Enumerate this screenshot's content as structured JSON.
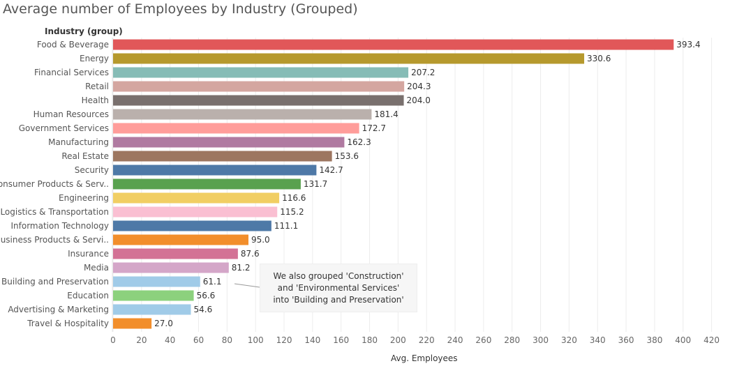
{
  "chart_data": {
    "type": "bar",
    "orientation": "horizontal",
    "title": "Average number of Employees by Industry (Grouped)",
    "row_header": "Industry (group)",
    "xlabel": "Avg. Employees",
    "xlim": [
      0,
      430
    ],
    "x_ticks": [
      0,
      20,
      40,
      60,
      80,
      100,
      120,
      140,
      160,
      180,
      200,
      220,
      240,
      260,
      280,
      300,
      320,
      340,
      360,
      380,
      400,
      420
    ],
    "grid": "vertical",
    "bars": [
      {
        "category": "Food & Beverage",
        "value": 393.4,
        "label": "393.4",
        "color": "#e15759"
      },
      {
        "category": "Energy",
        "value": 330.6,
        "label": "330.6",
        "color": "#b6992d"
      },
      {
        "category": "Financial Services",
        "value": 207.2,
        "label": "207.2",
        "color": "#86bcb6"
      },
      {
        "category": "Retail",
        "value": 204.3,
        "label": "204.3",
        "color": "#d4a6a0"
      },
      {
        "category": "Health",
        "value": 204.0,
        "label": "204.0",
        "color": "#79706e"
      },
      {
        "category": "Human Resources",
        "value": 181.4,
        "label": "181.4",
        "color": "#bab0ac"
      },
      {
        "category": "Government Services",
        "value": 172.7,
        "label": "172.7",
        "color": "#ff9d9a"
      },
      {
        "category": "Manufacturing",
        "value": 162.3,
        "label": "162.3",
        "color": "#b07aa1"
      },
      {
        "category": "Real Estate",
        "value": 153.6,
        "label": "153.6",
        "color": "#9d7660"
      },
      {
        "category": "Security",
        "value": 142.7,
        "label": "142.7",
        "color": "#4e79a7"
      },
      {
        "category": "Consumer Products & Serv..",
        "value": 131.7,
        "label": "131.7",
        "color": "#59a14f"
      },
      {
        "category": "Engineering",
        "value": 116.6,
        "label": "116.6",
        "color": "#f1ce63"
      },
      {
        "category": "Logistics & Transportation",
        "value": 115.2,
        "label": "115.2",
        "color": "#fabfd2"
      },
      {
        "category": "Information Technology",
        "value": 111.1,
        "label": "111.1",
        "color": "#4e79a7"
      },
      {
        "category": "Business Products & Servi..",
        "value": 95.0,
        "label": "95.0",
        "color": "#f28e2b"
      },
      {
        "category": "Insurance",
        "value": 87.6,
        "label": "87.6",
        "color": "#d37295"
      },
      {
        "category": "Media",
        "value": 81.2,
        "label": "81.2",
        "color": "#d4a6c8"
      },
      {
        "category": "Building and Preservation",
        "value": 61.1,
        "label": "61.1",
        "color": "#a0cbe8"
      },
      {
        "category": "Education",
        "value": 56.6,
        "label": "56.6",
        "color": "#8cd17d"
      },
      {
        "category": "Advertising & Marketing",
        "value": 54.6,
        "label": "54.6",
        "color": "#a0cbe8"
      },
      {
        "category": "Travel & Hospitality",
        "value": 27.0,
        "label": "27.0",
        "color": "#f28e2b"
      }
    ],
    "annotation": {
      "lines": [
        "We also grouped 'Construction'",
        "and 'Environmental Services'",
        "into 'Building and Preservation'"
      ],
      "target": "Building and Preservation"
    }
  }
}
